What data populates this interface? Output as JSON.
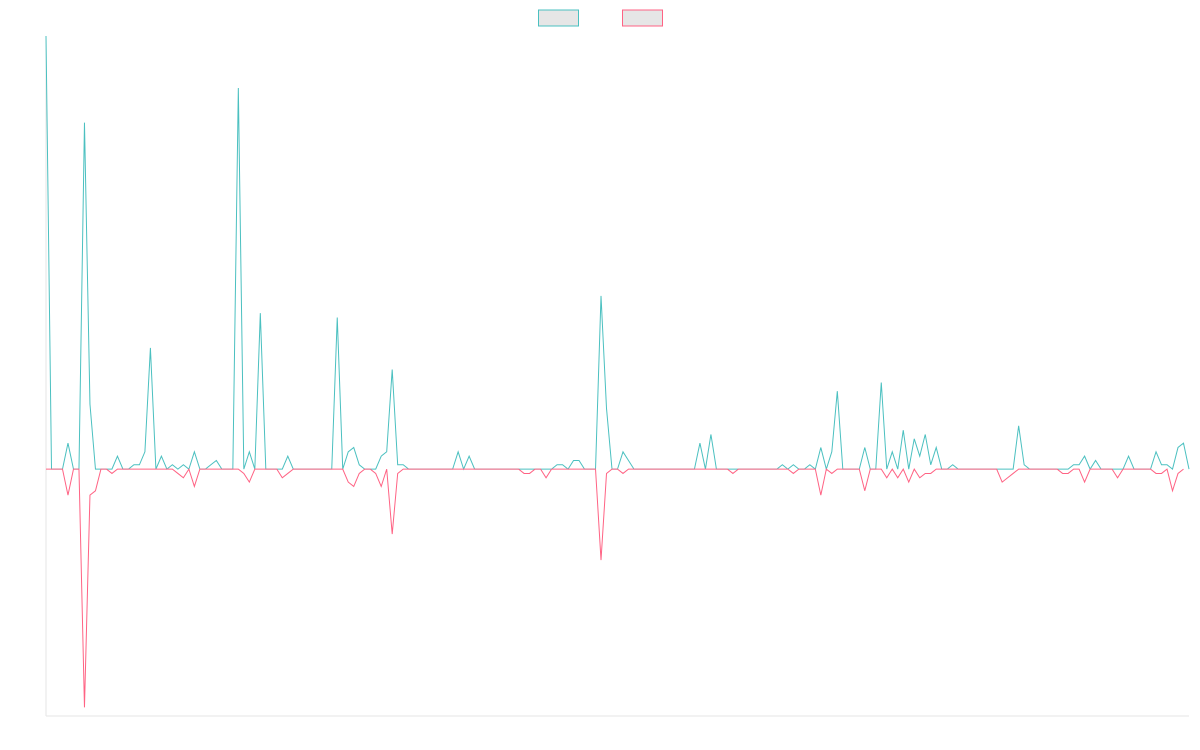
{
  "chart_data": {
    "type": "line",
    "title": "",
    "xlabel": "",
    "ylabel": "",
    "grid": false,
    "legend_position": "top-center",
    "ylim": [
      -57,
      100
    ],
    "series": [
      {
        "name": "",
        "color": "#4bc0c0",
        "fill": "#e6e6e6",
        "values": [
          100,
          0,
          0,
          0,
          6,
          0,
          0,
          80,
          15,
          0,
          0,
          0,
          0,
          3,
          0,
          0,
          1,
          1,
          4,
          28,
          0,
          3,
          0,
          1,
          0,
          1,
          0,
          4,
          0,
          0,
          1,
          2,
          0,
          0,
          0,
          88,
          0,
          4,
          0,
          36,
          0,
          0,
          0,
          0,
          3,
          0,
          0,
          0,
          0,
          0,
          0,
          0,
          0,
          35,
          0,
          4,
          5,
          1,
          0,
          0,
          0,
          3,
          4,
          23,
          1,
          1,
          0,
          0,
          0,
          0,
          0,
          0,
          0,
          0,
          0,
          4,
          0,
          3,
          0,
          0,
          0,
          0,
          0,
          0,
          0,
          0,
          0,
          0,
          0,
          0,
          0,
          0,
          0,
          1,
          1,
          0,
          2,
          2,
          0,
          0,
          0,
          40,
          14,
          0,
          0,
          4,
          2,
          0,
          0,
          0,
          0,
          0,
          0,
          0,
          0,
          0,
          0,
          0,
          0,
          6,
          0,
          8,
          0,
          0,
          0,
          0,
          0,
          0,
          0,
          0,
          0,
          0,
          0,
          0,
          1,
          0,
          1,
          0,
          0,
          1,
          0,
          5,
          0,
          4,
          18,
          0,
          0,
          0,
          0,
          5,
          0,
          0,
          20,
          0,
          4,
          0,
          9,
          0,
          7,
          3,
          8,
          1,
          5,
          0,
          0,
          1,
          0,
          0,
          0,
          0,
          0,
          0,
          0,
          0,
          0,
          0,
          0,
          10,
          1,
          0,
          0,
          0,
          0,
          0,
          0,
          0,
          0,
          1,
          1,
          3,
          0,
          2,
          0,
          0,
          0,
          0,
          0,
          3,
          0,
          0,
          0,
          0,
          4,
          1,
          1,
          0,
          5,
          6,
          0
        ]
      },
      {
        "name": "",
        "color": "#ff6384",
        "fill": "#e6e6e6",
        "values": [
          0,
          0,
          0,
          0,
          -6,
          0,
          0,
          -55,
          -6,
          -5,
          0,
          0,
          -1,
          0,
          0,
          0,
          0,
          0,
          0,
          0,
          0,
          0,
          0,
          0,
          -1,
          -2,
          0,
          -4,
          0,
          0,
          0,
          0,
          0,
          0,
          0,
          0,
          -1,
          -3,
          0,
          0,
          0,
          0,
          0,
          -2,
          -1,
          0,
          0,
          0,
          0,
          0,
          0,
          0,
          0,
          0,
          0,
          -3,
          -4,
          -1,
          0,
          0,
          -1,
          -4,
          0,
          -15,
          -1,
          0,
          0,
          0,
          0,
          0,
          0,
          0,
          0,
          0,
          0,
          0,
          0,
          0,
          0,
          0,
          0,
          0,
          0,
          0,
          0,
          0,
          0,
          -1,
          -1,
          0,
          0,
          -2,
          0,
          0,
          0,
          0,
          0,
          0,
          0,
          0,
          0,
          -21,
          -1,
          0,
          0,
          -1,
          0,
          0,
          0,
          0,
          0,
          0,
          0,
          0,
          0,
          0,
          0,
          0,
          0,
          0,
          0,
          0,
          0,
          0,
          0,
          -1,
          0,
          0,
          0,
          0,
          0,
          0,
          0,
          0,
          0,
          0,
          -1,
          0,
          0,
          0,
          0,
          -6,
          0,
          -1,
          0,
          0,
          0,
          0,
          0,
          -5,
          0,
          0,
          0,
          -2,
          0,
          -2,
          0,
          -3,
          0,
          -2,
          -1,
          -1,
          0,
          0,
          0,
          0,
          0,
          0,
          0,
          0,
          0,
          0,
          0,
          0,
          -3,
          -2,
          -1,
          0,
          0,
          0,
          0,
          0,
          0,
          0,
          0,
          -1,
          -1,
          0,
          0,
          -3,
          0,
          0,
          0,
          0,
          0,
          -2,
          0,
          0,
          0,
          0,
          0,
          0,
          -1,
          -1,
          0,
          -5,
          -1,
          0
        ]
      }
    ]
  }
}
